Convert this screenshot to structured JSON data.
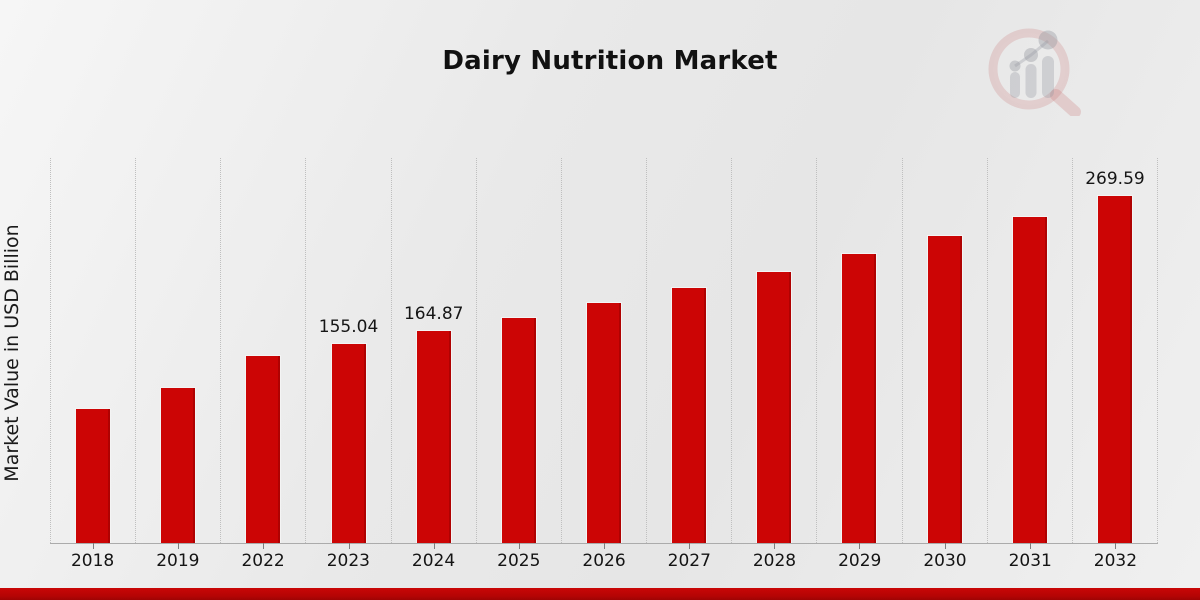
{
  "page": {
    "title": "Dairy Nutrition Market"
  },
  "chart_data": {
    "type": "bar",
    "title": "Dairy Nutrition Market",
    "xlabel": "",
    "ylabel": "Market Value in USD Billion",
    "categories": [
      "2018",
      "2019",
      "2022",
      "2023",
      "2024",
      "2025",
      "2026",
      "2027",
      "2028",
      "2029",
      "2030",
      "2031",
      "2032"
    ],
    "values": [
      104.5,
      120.5,
      145.8,
      155.04,
      164.87,
      175.3,
      186.5,
      198.3,
      210.8,
      224.2,
      238.4,
      253.5,
      269.59
    ],
    "data_labels": [
      null,
      null,
      null,
      "155.04",
      "164.87",
      null,
      null,
      null,
      null,
      null,
      null,
      null,
      "269.59"
    ],
    "ylim": [
      0,
      298
    ],
    "y_axis_ticks_visible": false,
    "grid": "vertical-dotted-column-separators",
    "legend": "none",
    "bar_color": "#cc0505",
    "bar_edge_color": "#f4f4f4",
    "gridline_color": "#bfbfbf",
    "axis_color": "#ababab",
    "label_color": "#161616",
    "units": "USD Billion"
  },
  "watermark": {
    "name": "magnifier-growth-chart-logo",
    "ring_color": "rgba(197,94,94,0.20)",
    "bars_color": "rgba(147,150,158,0.32)"
  },
  "footer": {
    "accent_color": "#b30404"
  }
}
